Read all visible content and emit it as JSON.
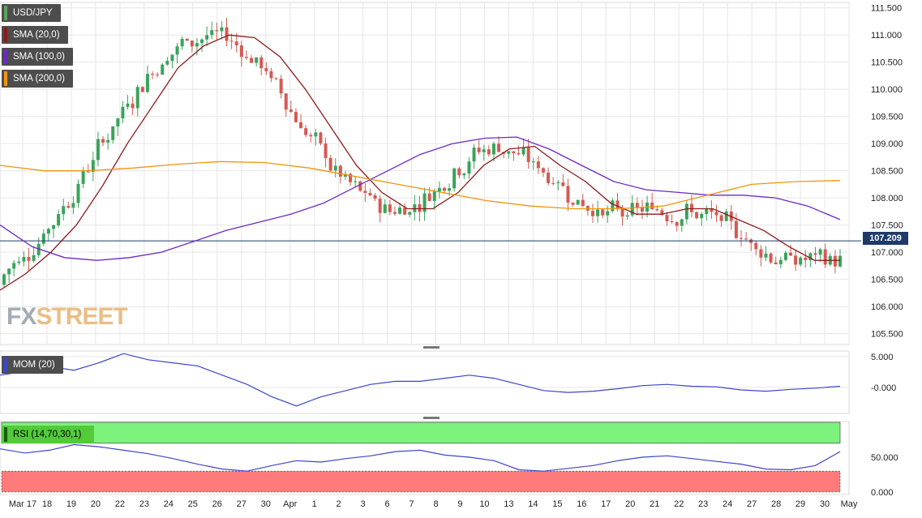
{
  "chart_data": [
    {
      "type": "candlestick",
      "panel": "price",
      "symbol": "USD/JPY",
      "last_price": "107.209",
      "y_ticks": [
        "111.500",
        "111.000",
        "110.500",
        "110.000",
        "109.500",
        "109.000",
        "108.500",
        "108.000",
        "107.500",
        "107.000",
        "106.500",
        "106.000",
        "105.500"
      ],
      "ylim": [
        105.3,
        111.6
      ],
      "x_ticks": [
        "Mar 17",
        "18",
        "19",
        "20",
        "22",
        "23",
        "24",
        "25",
        "26",
        "27",
        "30",
        "Apr",
        "1",
        "2",
        "3",
        "6",
        "7",
        "8",
        "9",
        "10",
        "13",
        "14",
        "15",
        "16",
        "17",
        "20",
        "21",
        "22",
        "23",
        "24",
        "27",
        "28",
        "29",
        "30",
        "May"
      ],
      "series": [
        {
          "name": "SMA (20,0)",
          "color": "#8b1a1a",
          "values": [
            106.3,
            106.6,
            107.0,
            107.5,
            108.2,
            109.0,
            109.7,
            110.4,
            110.8,
            111.0,
            110.95,
            110.6,
            110.0,
            109.3,
            108.6,
            108.1,
            107.8,
            107.8,
            108.1,
            108.6,
            108.9,
            108.95,
            108.6,
            108.3,
            107.9,
            107.7,
            107.7,
            107.8,
            107.8,
            107.6,
            107.4,
            107.1,
            106.85,
            106.85
          ]
        },
        {
          "name": "SMA (100,0)",
          "color": "#6a2bc2",
          "values": [
            107.5,
            107.1,
            106.9,
            106.85,
            106.9,
            107.0,
            107.2,
            107.4,
            107.55,
            107.7,
            107.9,
            108.2,
            108.5,
            108.8,
            109.0,
            109.1,
            109.12,
            108.9,
            108.6,
            108.3,
            108.15,
            108.1,
            108.05,
            108.05,
            108.0,
            107.85,
            107.6
          ]
        },
        {
          "name": "SMA (200,0)",
          "color": "#f0940a",
          "values": [
            108.6,
            108.5,
            108.5,
            108.55,
            108.62,
            108.67,
            108.65,
            108.55,
            108.4,
            108.25,
            108.1,
            107.95,
            107.85,
            107.8,
            107.8,
            107.85,
            108.05,
            108.25,
            108.3,
            108.32
          ]
        }
      ]
    },
    {
      "type": "line",
      "panel": "momentum",
      "legend": "MOM (20)",
      "y_ticks": [
        "5.000",
        "-0.000"
      ],
      "values": [
        2.0,
        2.6,
        3.4,
        2.8,
        4.0,
        5.5,
        4.5,
        4.0,
        3.5,
        2.0,
        0.5,
        -1.5,
        -3.0,
        -1.5,
        -0.5,
        0.5,
        1.0,
        1.0,
        1.5,
        2.0,
        1.5,
        0.5,
        -0.5,
        -0.8,
        -0.6,
        -0.2,
        0.3,
        0.5,
        0.2,
        0.1,
        -0.4,
        -0.6,
        -0.3,
        -0.1,
        0.2
      ]
    },
    {
      "type": "line",
      "panel": "rsi",
      "legend": "RSI (14,70,30,1)",
      "y_ticks": [
        "50.000",
        "0.000"
      ],
      "values": [
        62,
        56,
        60,
        68,
        65,
        60,
        55,
        48,
        40,
        33,
        30,
        38,
        45,
        43,
        48,
        52,
        58,
        60,
        53,
        50,
        45,
        32,
        30,
        34,
        38,
        45,
        50,
        52,
        48,
        44,
        40,
        33,
        32,
        38,
        58
      ]
    }
  ],
  "legend_sma20": "SMA (20,0)",
  "legend_sma100": "SMA (100,0)",
  "legend_sma200": "SMA (200,0)",
  "colors": {
    "bull": "#3aa35b",
    "bear": "#d45a52",
    "grid": "#e6e6e6",
    "mom": "#3a46c8",
    "rsi_upper": "#7cf37c",
    "rsi_lower": "#ff7b7b"
  },
  "watermark": {
    "prefix": "FX",
    "suffix": "STREET"
  }
}
